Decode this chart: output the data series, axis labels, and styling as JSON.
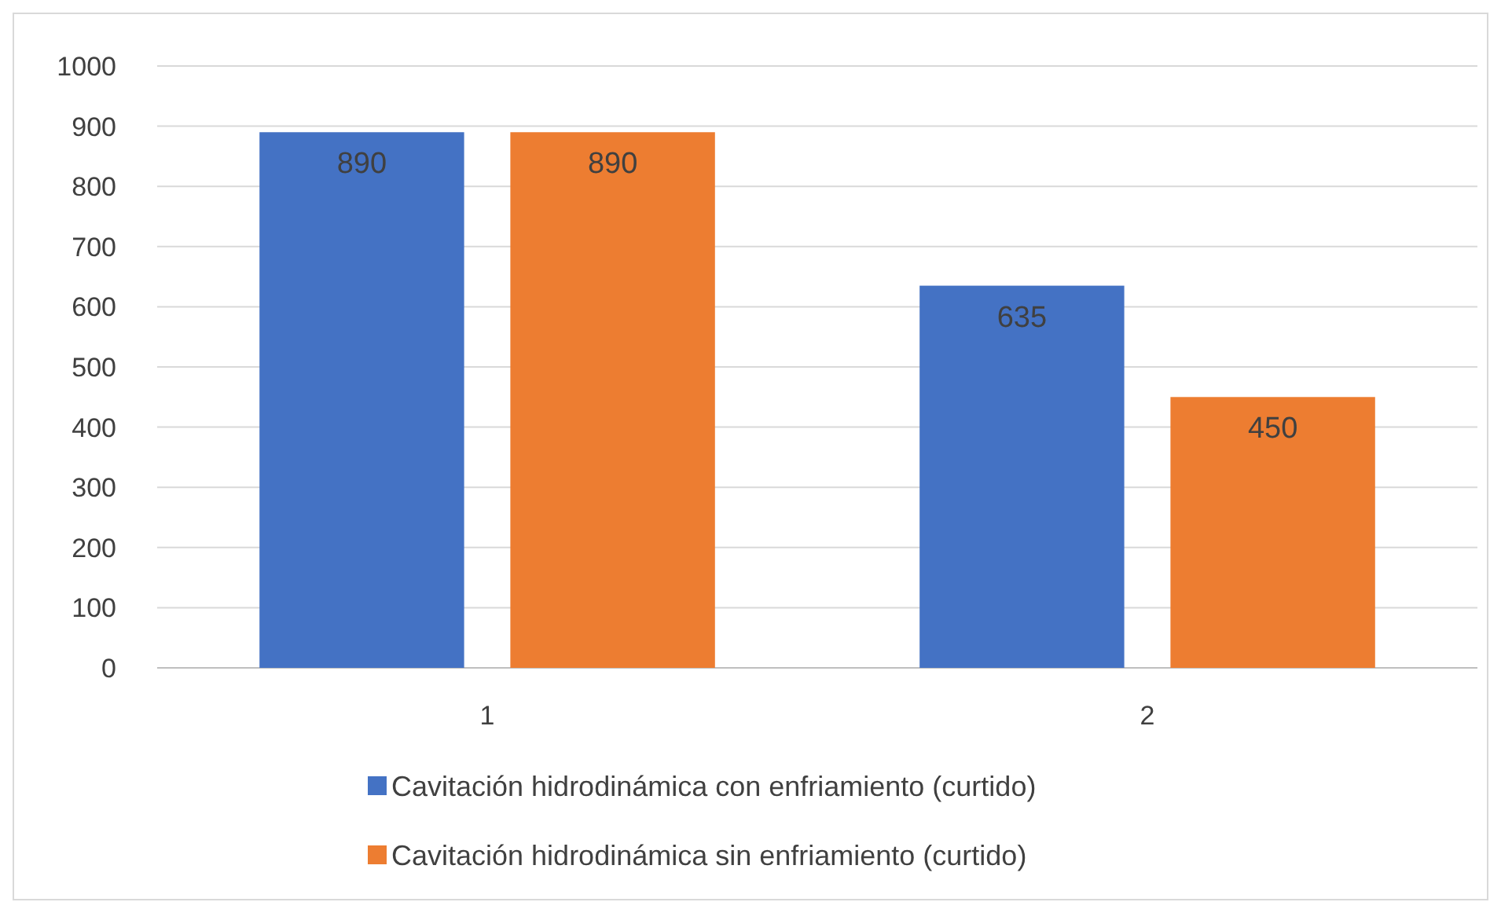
{
  "chart_data": {
    "type": "bar",
    "categories": [
      "1",
      "2"
    ],
    "series": [
      {
        "name": "Cavitación hidrodinámica con enfriamiento (curtido)",
        "color": "#4472c4",
        "values": [
          890,
          635
        ]
      },
      {
        "name": "Cavitación hidrodinámica sin enfriamiento (curtido)",
        "color": "#ed7d31",
        "values": [
          890,
          450
        ]
      }
    ],
    "ylim": [
      0,
      1000
    ],
    "yticks": [
      0,
      100,
      200,
      300,
      400,
      500,
      600,
      700,
      800,
      900,
      1000
    ],
    "grid": "y",
    "legend": "bottom",
    "data_labels": true
  }
}
